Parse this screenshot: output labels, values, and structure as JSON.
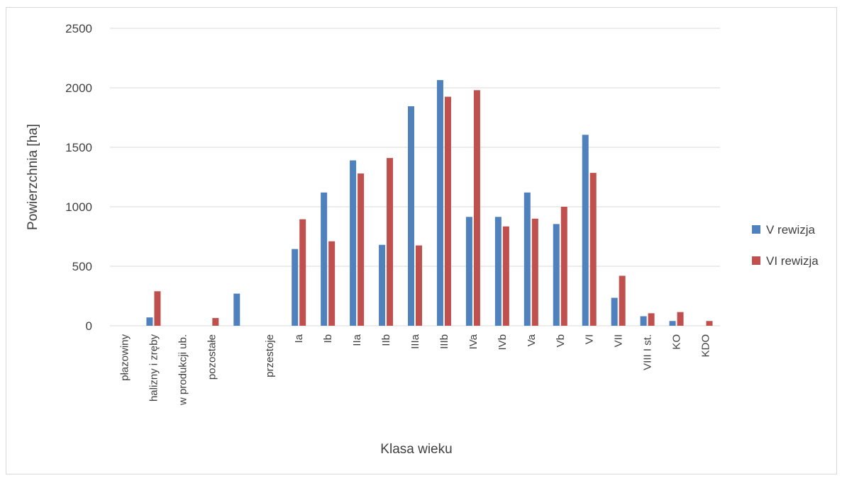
{
  "chart_data": {
    "type": "bar",
    "title": "",
    "xlabel": "Klasa wieku",
    "ylabel": "Powierzchnia  [ha]",
    "ylim": [
      0,
      2500
    ],
    "yticks": [
      0,
      500,
      1000,
      1500,
      2000,
      2500
    ],
    "grid": true,
    "legend_position": "right",
    "categories": [
      "płazowiny",
      "halizny i zręby",
      "w produkcji ub.",
      "pozostałe",
      "",
      "przestoje",
      "Ia",
      "Ib",
      "IIa",
      "IIb",
      "IIIa",
      "IIIb",
      "IVa",
      "IVb",
      "Va",
      "Vb",
      "VI",
      "VII",
      "VIII I st.",
      "KO",
      "KDO"
    ],
    "series": [
      {
        "name": "V rewizja",
        "color": "#4f81bd",
        "values": [
          0,
          70,
          0,
          0,
          270,
          0,
          645,
          1120,
          1390,
          680,
          1845,
          2065,
          915,
          915,
          1120,
          855,
          1605,
          235,
          80,
          40,
          0
        ]
      },
      {
        "name": "VI rewizja",
        "color": "#c0504d",
        "values": [
          0,
          290,
          0,
          65,
          0,
          0,
          895,
          710,
          1280,
          1410,
          675,
          1925,
          1980,
          835,
          900,
          1000,
          1285,
          420,
          105,
          115,
          40
        ]
      }
    ]
  }
}
